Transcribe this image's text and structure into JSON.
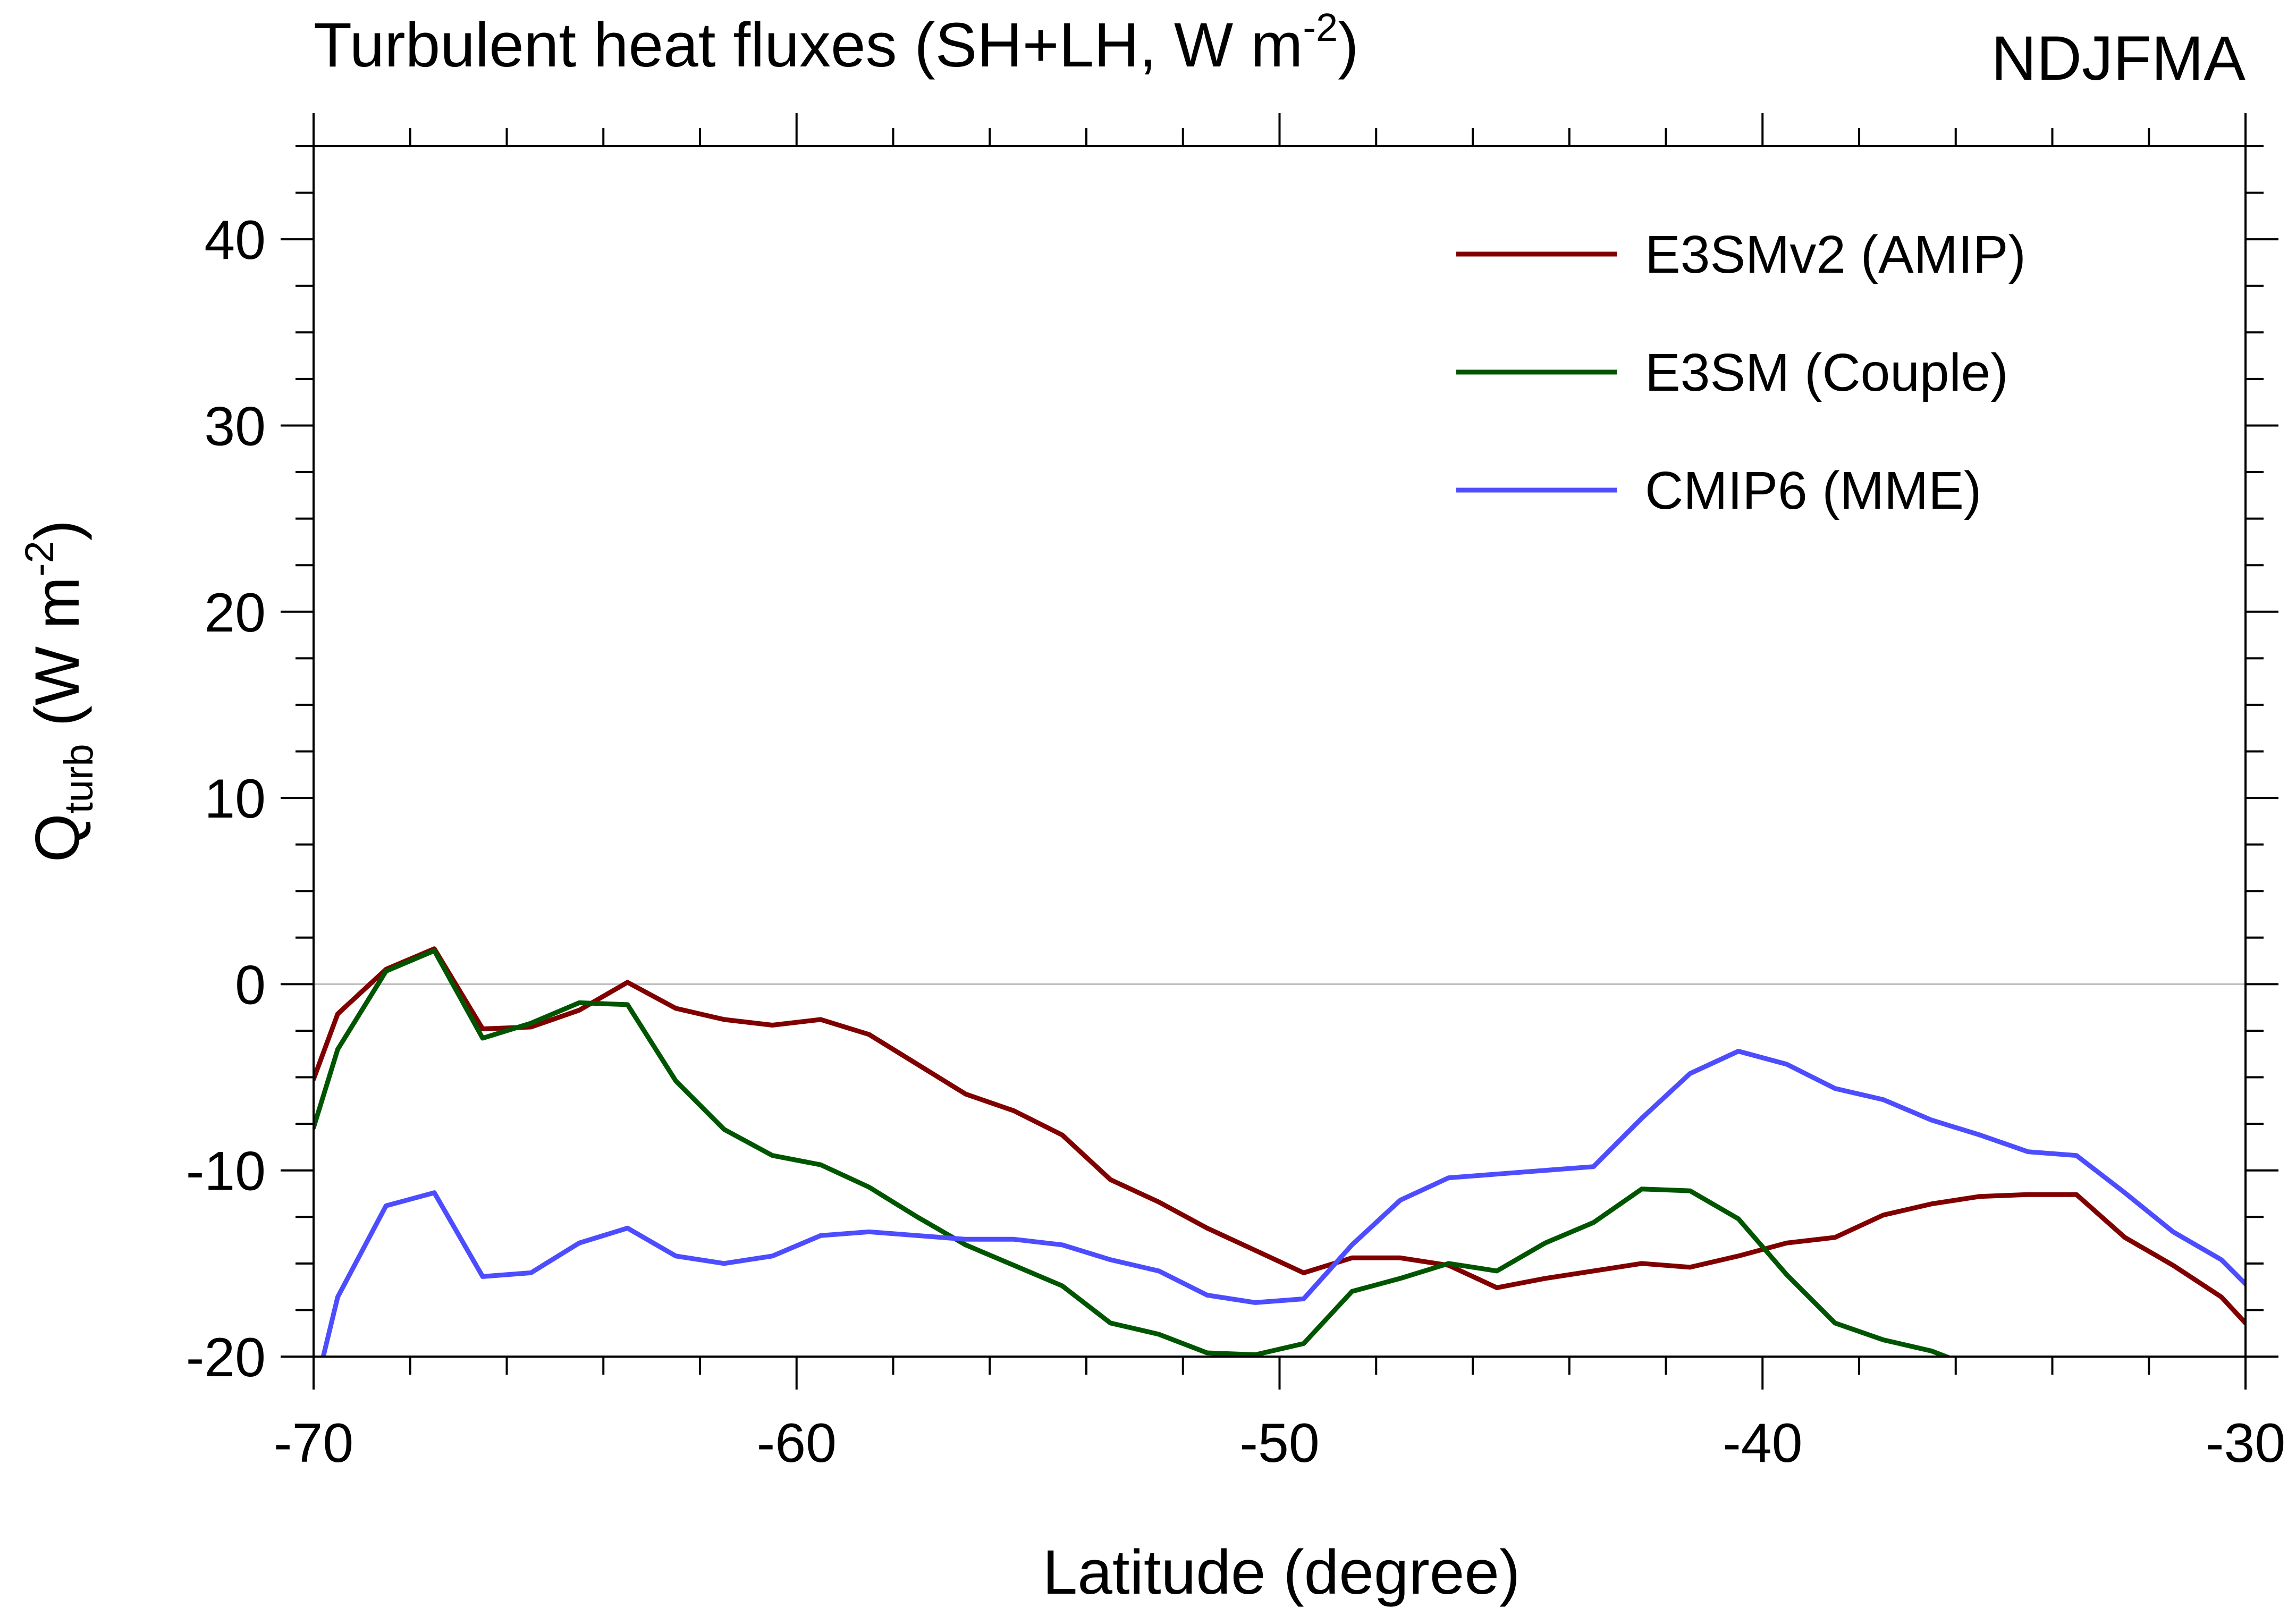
{
  "chart_data": {
    "type": "line",
    "title": "Turbulent heat fluxes (SH+LH, W m",
    "title_superscript": "-2",
    "title_suffix": ")",
    "season": "NDJFMA",
    "xlabel": "Latitude (degree)",
    "ylabel_main": "Q",
    "ylabel_sub": "turb",
    "ylabel_mid": " (W m",
    "ylabel_sup": "-2",
    "ylabel_end": ")",
    "xlim": [
      -70,
      -30
    ],
    "ylim": [
      -20,
      45
    ],
    "x_ticks": [
      -70,
      -60,
      -50,
      -40,
      -30
    ],
    "y_ticks": [
      -20,
      -10,
      0,
      10,
      20,
      30,
      40
    ],
    "x_tick_labels": [
      "-70",
      "-60",
      "-50",
      "-40",
      "-30"
    ],
    "y_tick_labels": [
      "-20",
      "-10",
      "0",
      "10",
      "20",
      "30",
      "40"
    ],
    "x_minor_step": 2,
    "y_minor_step": 2.5,
    "zero_line": true,
    "grid": false,
    "legend_placement": "top-right",
    "series": [
      {
        "name": "E3SMv2 (AMIP)",
        "color": "#800000",
        "x": [
          -70,
          -69.5,
          -68.5,
          -67.5,
          -66.5,
          -65.5,
          -64.5,
          -63.5,
          -62.5,
          -61.5,
          -60.5,
          -59.5,
          -58.5,
          -57.5,
          -56.5,
          -55.5,
          -54.5,
          -53.5,
          -52.5,
          -51.5,
          -50.5,
          -49.5,
          -48.5,
          -47.5,
          -46.5,
          -45.5,
          -44.5,
          -43.5,
          -42.5,
          -41.5,
          -40.5,
          -39.5,
          -38.5,
          -37.5,
          -36.5,
          -35.5,
          -34.5,
          -33.5,
          -32.5,
          -31.5,
          -30.5,
          -30
        ],
        "values": [
          -5.1,
          -1.6,
          0.8,
          1.9,
          -2.4,
          -2.3,
          -1.4,
          0.1,
          -1.3,
          -1.9,
          -2.2,
          -1.9,
          -2.7,
          -4.3,
          -5.9,
          -6.8,
          -8.1,
          -10.5,
          -11.7,
          -13.1,
          -14.3,
          -15.5,
          -14.7,
          -14.7,
          -15.1,
          -16.3,
          -15.8,
          -15.4,
          -15.0,
          -15.2,
          -14.6,
          -13.9,
          -13.6,
          -12.4,
          -11.8,
          -11.4,
          -11.3,
          -11.3,
          -13.6,
          -15.1,
          -16.8,
          -18.2
        ]
      },
      {
        "name": "E3SM (Couple)",
        "color": "#005500",
        "x": [
          -70,
          -69.5,
          -68.5,
          -67.5,
          -66.5,
          -65.5,
          -64.5,
          -63.5,
          -62.5,
          -61.5,
          -60.5,
          -59.5,
          -58.5,
          -57.5,
          -56.5,
          -55.5,
          -54.5,
          -53.5,
          -52.5,
          -51.5,
          -50.5,
          -49.5,
          -48.5,
          -47.5,
          -46.5,
          -45.5,
          -44.5,
          -43.5,
          -42.5,
          -41.5,
          -40.5,
          -39.5,
          -38.5,
          -37.5,
          -36.5,
          -36
        ],
        "values": [
          -7.7,
          -3.5,
          0.7,
          1.8,
          -2.9,
          -2.1,
          -1.0,
          -1.1,
          -5.2,
          -7.8,
          -9.2,
          -9.7,
          -10.9,
          -12.5,
          -14.0,
          -15.1,
          -16.2,
          -18.2,
          -18.8,
          -19.8,
          -19.9,
          -19.3,
          -16.5,
          -15.8,
          -15.0,
          -15.4,
          -13.9,
          -12.8,
          -11.0,
          -11.1,
          -12.6,
          -15.6,
          -18.2,
          -19.1,
          -19.7,
          -20.2
        ]
      },
      {
        "name": "CMIP6 (MME)",
        "color": "#4d4dff",
        "x": [
          -69.8,
          -69.5,
          -68.5,
          -67.5,
          -66.5,
          -65.5,
          -64.5,
          -63.5,
          -62.5,
          -61.5,
          -60.5,
          -59.5,
          -58.5,
          -57.5,
          -56.5,
          -55.5,
          -54.5,
          -53.5,
          -52.5,
          -51.5,
          -50.5,
          -49.5,
          -48.5,
          -47.5,
          -46.5,
          -45.5,
          -44.5,
          -43.5,
          -42.5,
          -41.5,
          -40.5,
          -39.5,
          -38.5,
          -37.5,
          -36.5,
          -35.5,
          -34.5,
          -33.5,
          -32.5,
          -31.5,
          -30.5,
          -30
        ],
        "values": [
          -20.0,
          -16.8,
          -11.9,
          -11.2,
          -15.7,
          -15.5,
          -13.9,
          -13.1,
          -14.6,
          -15.0,
          -14.6,
          -13.5,
          -13.3,
          -13.5,
          -13.7,
          -13.7,
          -14.0,
          -14.8,
          -15.4,
          -16.7,
          -17.1,
          -16.9,
          -14.0,
          -11.6,
          -10.4,
          -10.2,
          -10.0,
          -9.8,
          -7.2,
          -4.8,
          -3.6,
          -4.3,
          -5.6,
          -6.2,
          -7.3,
          -8.1,
          -9.0,
          -9.2,
          -11.2,
          -13.3,
          -14.8,
          -16.1
        ]
      }
    ]
  }
}
